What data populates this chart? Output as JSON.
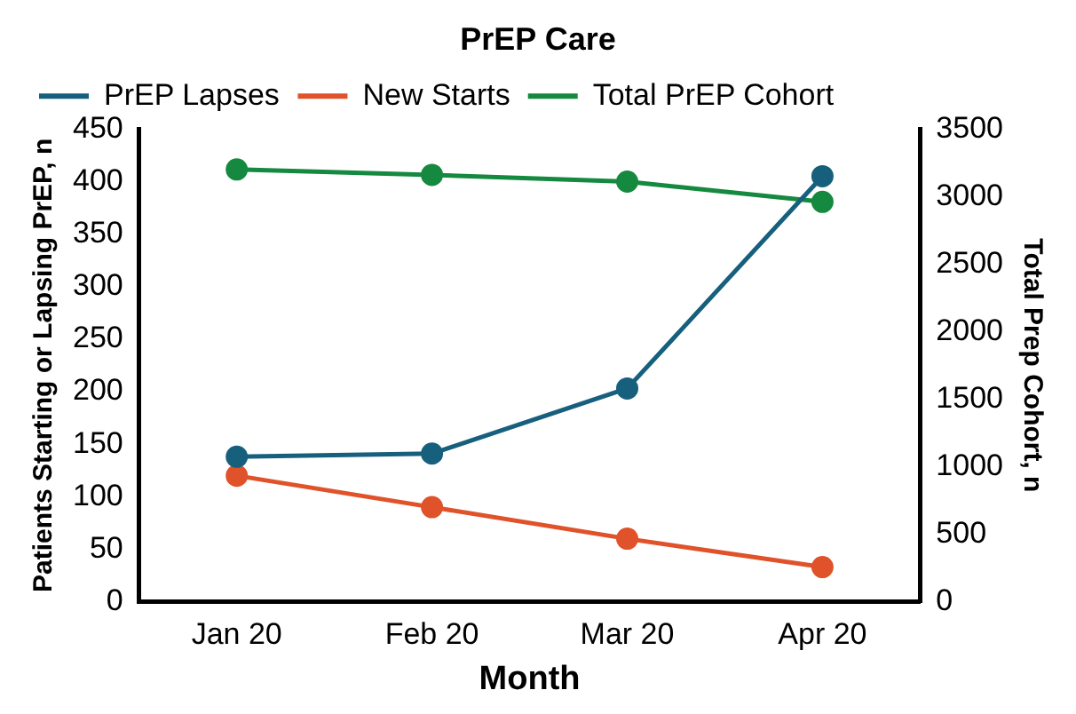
{
  "chart_data": {
    "type": "line",
    "title": "PrEP Care",
    "xlabel": "Month",
    "ylabel": "Patients Starting or Lapsing PrEP, n",
    "y2label": "Total Prep Cohort, n",
    "categories": [
      "Jan 20",
      "Feb 20",
      "Mar 20",
      "Apr 20"
    ],
    "series": [
      {
        "name": "PrEP Lapses",
        "color": "#17607d",
        "values": [
          138,
          141,
          203,
          405
        ]
      },
      {
        "name": "New Starts",
        "color": "#e0532a",
        "values": [
          120,
          90,
          60,
          33
        ]
      },
      {
        "name": "Total PrEP Cohort",
        "color": "#15893f",
        "values": [
          3200,
          3160,
          3110,
          2960
        ],
        "axis": "y2"
      }
    ],
    "ylim": [
      0,
      450
    ],
    "yticks": [
      0,
      50,
      100,
      150,
      200,
      250,
      300,
      350,
      400,
      450
    ],
    "y2lim": [
      0,
      3500
    ],
    "y2ticks": [
      0,
      500,
      1000,
      1500,
      2000,
      2500,
      3000,
      3500
    ],
    "legend": "top",
    "marker": "circle",
    "grid": false
  }
}
